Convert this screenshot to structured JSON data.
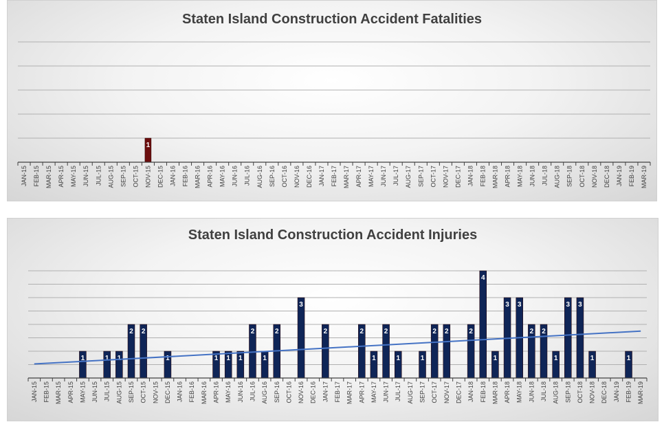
{
  "chart_data": [
    {
      "type": "bar",
      "title": "Staten Island Construction Accident Fatalities",
      "xlabel": "",
      "ylabel": "",
      "ylim": [
        0,
        5
      ],
      "grid": true,
      "categories": [
        "JAN-15",
        "FEB-15",
        "MAR-15",
        "APR-15",
        "MAY-15",
        "JUN-15",
        "JUL-15",
        "AUG-15",
        "SEP-15",
        "OCT-15",
        "NOV-15",
        "DEC-15",
        "JAN-16",
        "FEB-16",
        "MAR-16",
        "APR-16",
        "MAY-16",
        "JUN-16",
        "JUL-16",
        "AUG-16",
        "SEP-16",
        "OCT-16",
        "NOV-16",
        "DEC-16",
        "JAN-17",
        "FEB-17",
        "MAR-17",
        "APR-17",
        "MAY-17",
        "JUN-17",
        "JUL-17",
        "AUG-17",
        "SEP-17",
        "OCT-17",
        "NOV-17",
        "DEC-17",
        "JAN-18",
        "FEB-18",
        "MAR-18",
        "APR-18",
        "MAY-18",
        "JUN-18",
        "JUL-18",
        "AUG-18",
        "SEP-18",
        "OCT-18",
        "NOV-18",
        "DEC-18",
        "JAN-19",
        "FEB-19",
        "MAR-19"
      ],
      "series": [
        {
          "values": [
            0,
            0,
            0,
            0,
            0,
            0,
            0,
            0,
            0,
            0,
            1,
            0,
            0,
            0,
            0,
            0,
            0,
            0,
            0,
            0,
            0,
            0,
            0,
            0,
            0,
            0,
            0,
            0,
            0,
            0,
            0,
            0,
            0,
            0,
            0,
            0,
            0,
            0,
            0,
            0,
            0,
            0,
            0,
            0,
            0,
            0,
            0,
            0,
            0,
            0,
            0
          ],
          "color": "#6b0d0d"
        }
      ]
    },
    {
      "type": "bar",
      "title": "Staten Island Construction Accident Injuries",
      "xlabel": "",
      "ylabel": "",
      "ylim": [
        0,
        4
      ],
      "grid": true,
      "trendline": {
        "type": "linear",
        "color": "#4472c4"
      },
      "categories": [
        "JAN-15",
        "FEB-15",
        "MAR-15",
        "APR-15",
        "MAY-15",
        "JUN-15",
        "JUL-15",
        "AUG-15",
        "SEP-15",
        "OCT-15",
        "NOV-15",
        "DEC-15",
        "JAN-16",
        "FEB-16",
        "MAR-16",
        "APR-16",
        "MAY-16",
        "JUN-16",
        "JUL-16",
        "AUG-16",
        "SEP-16",
        "OCT-16",
        "NOV-16",
        "DEC-16",
        "JAN-17",
        "FEB-17",
        "MAR-17",
        "APR-17",
        "MAY-17",
        "JUN-17",
        "JUL-17",
        "AUG-17",
        "SEP-17",
        "OCT-17",
        "NOV-17",
        "DEC-17",
        "JAN-18",
        "FEB-18",
        "MAR-18",
        "APR-18",
        "MAY-18",
        "JUN-18",
        "JUL-18",
        "AUG-18",
        "SEP-18",
        "OCT-18",
        "NOV-18",
        "DEC-18",
        "JAN-19",
        "FEB-19",
        "MAR-19"
      ],
      "series": [
        {
          "values": [
            0,
            0,
            0,
            0,
            1,
            0,
            1,
            1,
            2,
            2,
            0,
            1,
            0,
            0,
            0,
            1,
            1,
            1,
            2,
            1,
            2,
            0,
            3,
            0,
            2,
            0,
            0,
            2,
            1,
            2,
            1,
            0,
            1,
            2,
            2,
            0,
            2,
            4,
            1,
            3,
            3,
            2,
            2,
            1,
            3,
            3,
            1,
            0,
            0,
            1,
            0
          ],
          "color": "#0f2557"
        }
      ]
    }
  ]
}
